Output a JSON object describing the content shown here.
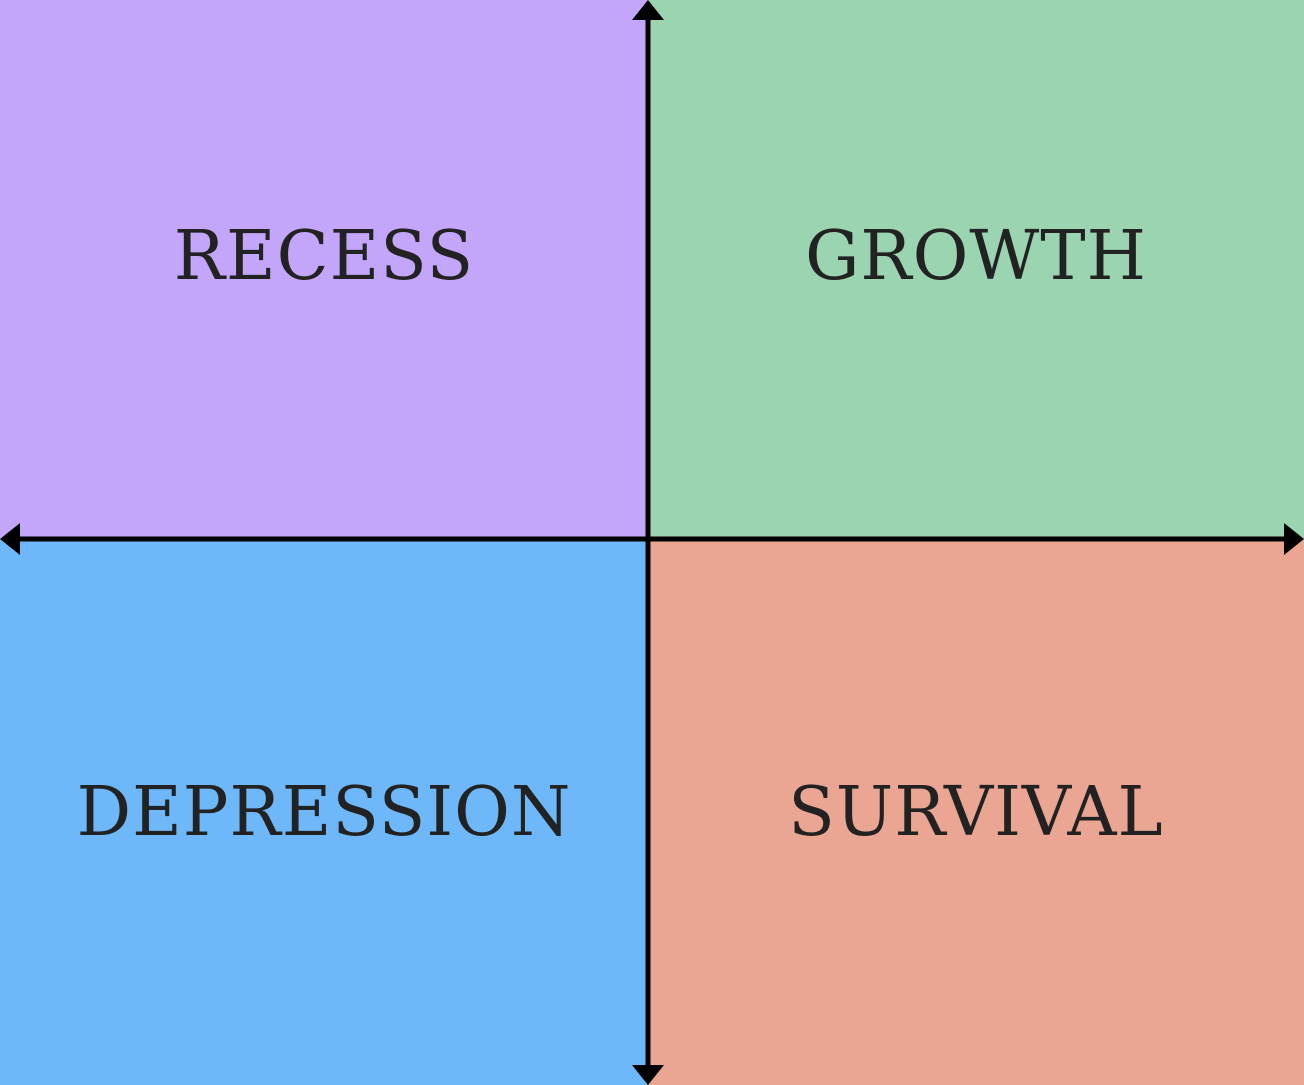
{
  "quadrants": {
    "top_left": {
      "label": "RECESS",
      "color": "#c3a6fa"
    },
    "top_right": {
      "label": "GROWTH",
      "color": "#9bd4b1"
    },
    "bottom_left": {
      "label": "DEPRESSION",
      "color": "#6eb8f9"
    },
    "bottom_right": {
      "label": "SURVIVAL",
      "color": "#eaa693"
    }
  },
  "axis_color": "#000000"
}
